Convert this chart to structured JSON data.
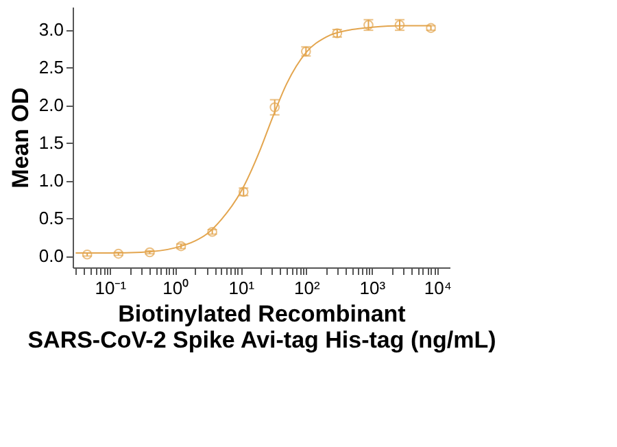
{
  "chart_data": {
    "type": "scatter",
    "xlabel": "Biotinylated Recombinant\nSARS-CoV-2 Spike Avi-tag His-tag (ng/mL)",
    "ylabel": "Mean OD",
    "log": "x",
    "marker": "circle",
    "grid": false,
    "series": [
      {
        "color": "#e3a54e",
        "x": [
          0.045,
          0.135,
          0.406,
          1.22,
          3.66,
          11,
          32.9,
          98.8,
          296,
          889,
          2667,
          8000
        ],
        "values": [
          0.02,
          0.03,
          0.05,
          0.13,
          0.32,
          0.85,
          1.97,
          2.71,
          2.95,
          3.06,
          3.06,
          3.02
        ],
        "errors": [
          0.02,
          0.02,
          0.02,
          0.03,
          0.03,
          0.05,
          0.1,
          0.06,
          0.05,
          0.07,
          0.07,
          0.03
        ]
      },
      {
        "type": "line",
        "marker": "none",
        "line_style": "solid",
        "color": "#e3a54e",
        "x": [
          0.03,
          0.1,
          0.3,
          1,
          2,
          3,
          5,
          10,
          20,
          30,
          50,
          100,
          200,
          500,
          1000,
          3000,
          8000
        ],
        "values": [
          0.04,
          0.04,
          0.05,
          0.11,
          0.2,
          0.29,
          0.48,
          0.85,
          1.42,
          1.82,
          2.28,
          2.7,
          2.9,
          3.0,
          3.03,
          3.05,
          3.05
        ]
      }
    ],
    "xlim": [
      0.027,
      15500
    ],
    "ylim": [
      -0.15,
      3.3
    ],
    "xticks": [
      {
        "value": 0.03,
        "label": null
      },
      {
        "value": 0.04,
        "label": null
      },
      {
        "value": 0.05,
        "label": null
      },
      {
        "value": 0.06,
        "label": null
      },
      {
        "value": 0.07,
        "label": null
      },
      {
        "value": 0.08,
        "label": null
      },
      {
        "value": 0.09,
        "label": null
      },
      {
        "value": 0.1,
        "label": "10⁻¹"
      },
      {
        "value": 0.2,
        "label": null
      },
      {
        "value": 0.3,
        "label": null
      },
      {
        "value": 0.4,
        "label": null
      },
      {
        "value": 0.5,
        "label": null
      },
      {
        "value": 0.6,
        "label": null
      },
      {
        "value": 0.7,
        "label": null
      },
      {
        "value": 0.8,
        "label": null
      },
      {
        "value": 0.9,
        "label": null
      },
      {
        "value": 1,
        "label": "10⁰"
      },
      {
        "value": 2,
        "label": null
      },
      {
        "value": 3,
        "label": null
      },
      {
        "value": 4,
        "label": null
      },
      {
        "value": 5,
        "label": null
      },
      {
        "value": 6,
        "label": null
      },
      {
        "value": 7,
        "label": null
      },
      {
        "value": 8,
        "label": null
      },
      {
        "value": 9,
        "label": null
      },
      {
        "value": 10,
        "label": "10¹"
      },
      {
        "value": 20,
        "label": null
      },
      {
        "value": 30,
        "label": null
      },
      {
        "value": 40,
        "label": null
      },
      {
        "value": 50,
        "label": null
      },
      {
        "value": 60,
        "label": null
      },
      {
        "value": 70,
        "label": null
      },
      {
        "value": 80,
        "label": null
      },
      {
        "value": 90,
        "label": null
      },
      {
        "value": 100,
        "label": "10²"
      },
      {
        "value": 200,
        "label": null
      },
      {
        "value": 300,
        "label": null
      },
      {
        "value": 400,
        "label": null
      },
      {
        "value": 500,
        "label": null
      },
      {
        "value": 600,
        "label": null
      },
      {
        "value": 700,
        "label": null
      },
      {
        "value": 800,
        "label": null
      },
      {
        "value": 900,
        "label": null
      },
      {
        "value": 1000,
        "label": "10³"
      },
      {
        "value": 2000,
        "label": null
      },
      {
        "value": 3000,
        "label": null
      },
      {
        "value": 4000,
        "label": null
      },
      {
        "value": 5000,
        "label": null
      },
      {
        "value": 6000,
        "label": null
      },
      {
        "value": 7000,
        "label": null
      },
      {
        "value": 8000,
        "label": null
      },
      {
        "value": 9000,
        "label": null
      },
      {
        "value": 10000,
        "label": "10⁴"
      }
    ],
    "yticks": [
      {
        "value": 0,
        "label": "0.0"
      },
      0.5,
      {
        "value": 1,
        "label": "1.0"
      },
      1.5,
      {
        "value": 2,
        "label": "2.0"
      },
      2.5,
      {
        "value": 3,
        "label": "3.0"
      }
    ]
  }
}
